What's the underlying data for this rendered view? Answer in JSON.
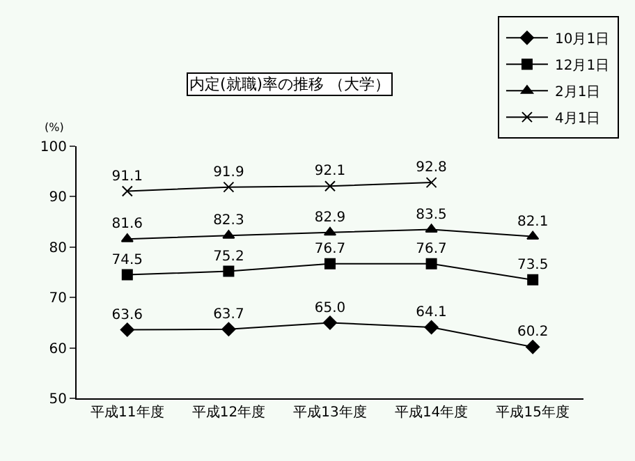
{
  "chart_data": {
    "type": "line",
    "title": "内定(就職)率の推移 （大学）",
    "ylabel": "(%)",
    "categories": [
      "平成11年度",
      "平成12年度",
      "平成13年度",
      "平成14年度",
      "平成15年度"
    ],
    "series": [
      {
        "name": "10月1日",
        "color": "#000000",
        "marker": "diamond",
        "values": [
          63.6,
          63.7,
          65.0,
          64.1,
          60.2
        ],
        "value_labels": [
          "63.6",
          "63.7",
          "65.0",
          "64.1",
          "60.2"
        ]
      },
      {
        "name": "12月1日",
        "color": "#000000",
        "marker": "square",
        "values": [
          74.5,
          75.2,
          76.7,
          76.7,
          73.5
        ],
        "value_labels": [
          "74.5",
          "75.2",
          "76.7",
          "76.7",
          "73.5"
        ]
      },
      {
        "name": "2月1日",
        "color": "#000000",
        "marker": "triangle",
        "values": [
          81.6,
          82.3,
          82.9,
          83.5,
          82.1
        ],
        "value_labels": [
          "81.6",
          "82.3",
          "82.9",
          "83.5",
          "82.1"
        ]
      },
      {
        "name": "4月1日",
        "color": "#000000",
        "marker": "cross",
        "values": [
          91.1,
          91.9,
          92.1,
          92.8,
          null
        ],
        "value_labels": [
          "91.1",
          "91.9",
          "92.1",
          "92.8",
          null
        ]
      }
    ],
    "ylim": [
      50,
      100
    ],
    "yticks": [
      50,
      60,
      70,
      80,
      90,
      100
    ],
    "grid": false,
    "legend": "top right",
    "line_style": "solid"
  }
}
